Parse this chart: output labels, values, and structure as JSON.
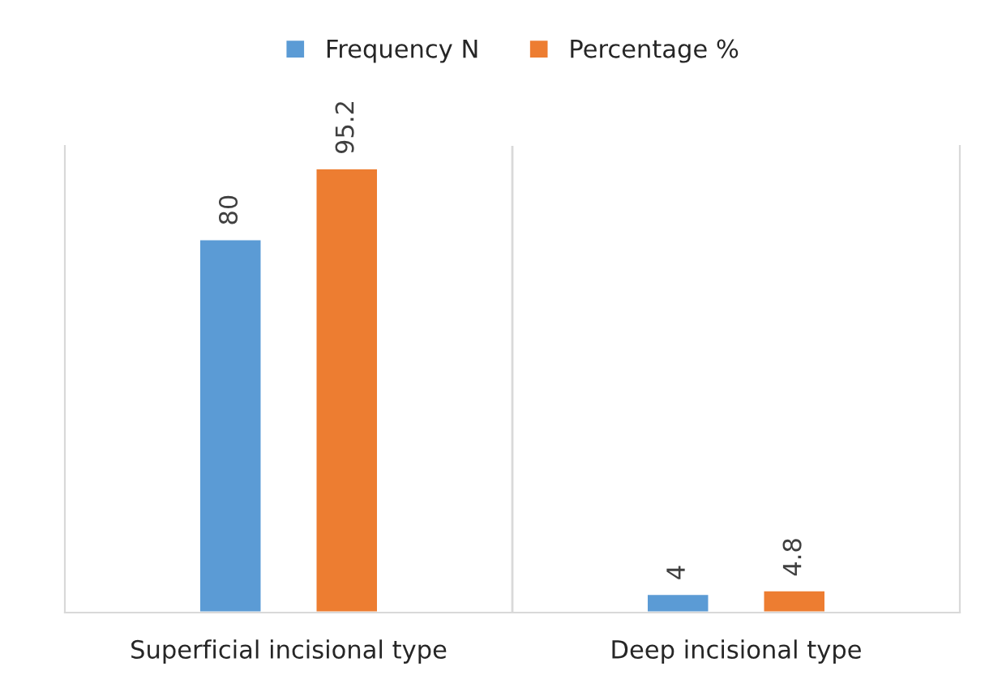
{
  "chart_data": {
    "type": "bar",
    "categories": [
      "Superficial incisional type",
      "Deep incisional type"
    ],
    "series": [
      {
        "name": "Frequency N",
        "color": "#5b9bd5",
        "values": [
          80,
          4
        ]
      },
      {
        "name": "Percentage %",
        "color": "#ed7d31",
        "values": [
          95.2,
          4.8
        ]
      }
    ],
    "ylim": [
      0,
      100
    ],
    "data_labels": true,
    "legend": "top"
  }
}
